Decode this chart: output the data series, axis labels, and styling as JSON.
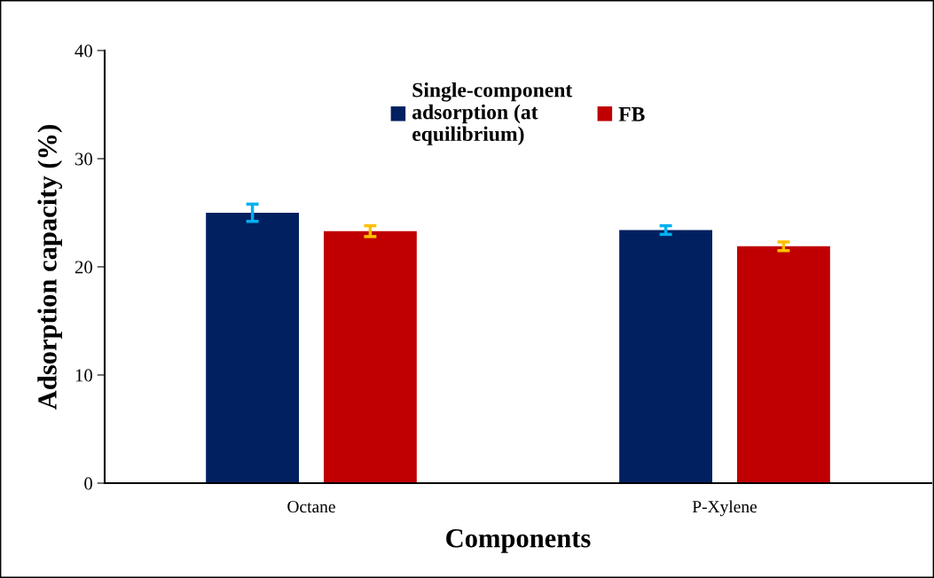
{
  "chart_data": {
    "type": "bar",
    "xlabel": "Components",
    "ylabel": "Adsorption capacity (%)",
    "categories": [
      "Octane",
      "P-Xylene"
    ],
    "series": [
      {
        "name": "Single-component\nadsorption (at\nequilibrium)",
        "color": "#002060",
        "values": [
          25.0,
          23.4
        ],
        "errors": [
          0.8,
          0.4
        ]
      },
      {
        "name": "FB",
        "color": "#c00000",
        "values": [
          23.3,
          21.9
        ],
        "errors": [
          0.5,
          0.4
        ]
      }
    ],
    "ylim": [
      0,
      40
    ],
    "yticks": [
      0,
      10,
      20,
      30,
      40
    ],
    "grid": false,
    "legend": "top"
  }
}
